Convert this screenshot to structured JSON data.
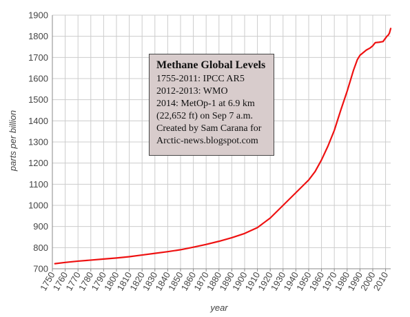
{
  "chart_data": {
    "type": "line",
    "title": "",
    "xlabel": "year",
    "ylabel": "parts per billion",
    "xlim": [
      1750,
      2014
    ],
    "ylim": [
      700,
      1900
    ],
    "xticks": [
      1750,
      1760,
      1770,
      1780,
      1790,
      1800,
      1810,
      1820,
      1830,
      1840,
      1850,
      1860,
      1870,
      1880,
      1890,
      1900,
      1910,
      1920,
      1930,
      1940,
      1950,
      1960,
      1970,
      1980,
      1990,
      2000,
      2010
    ],
    "yticks": [
      700,
      800,
      900,
      1000,
      1100,
      1200,
      1300,
      1400,
      1500,
      1600,
      1700,
      1800,
      1900
    ],
    "grid": true,
    "series": [
      {
        "color": "#ee1111",
        "x": [
          1752,
          1760,
          1770,
          1780,
          1790,
          1800,
          1810,
          1820,
          1830,
          1840,
          1850,
          1860,
          1870,
          1880,
          1890,
          1900,
          1910,
          1920,
          1930,
          1940,
          1945,
          1950,
          1955,
          1960,
          1965,
          1970,
          1975,
          1980,
          1985,
          1988,
          1990,
          1995,
          1998,
          2000,
          2002,
          2005,
          2008,
          2011,
          2012,
          2013,
          2014
        ],
        "y": [
          724,
          730,
          736,
          741,
          746,
          751,
          757,
          765,
          773,
          781,
          790,
          802,
          815,
          830,
          847,
          867,
          895,
          940,
          1000,
          1060,
          1090,
          1120,
          1160,
          1215,
          1280,
          1355,
          1450,
          1540,
          1640,
          1690,
          1710,
          1735,
          1745,
          1755,
          1770,
          1772,
          1775,
          1800,
          1805,
          1815,
          1837
        ]
      }
    ],
    "annotation": {
      "title": "Methane Global Levels",
      "lines": [
        "1755-2011: IPCC AR5",
        "2012-2013: WMO",
        "2014: MetOp-1 at 6.9 km",
        "(22,652 ft) on Sep 7 a.m.",
        "Created by Sam Carana for",
        "Arctic-news.blogspot.com"
      ]
    },
    "colors": {
      "grid": "#cccccc",
      "axis": "#888888",
      "box_fill": "#d8cccc",
      "box_border": "#444444"
    }
  }
}
